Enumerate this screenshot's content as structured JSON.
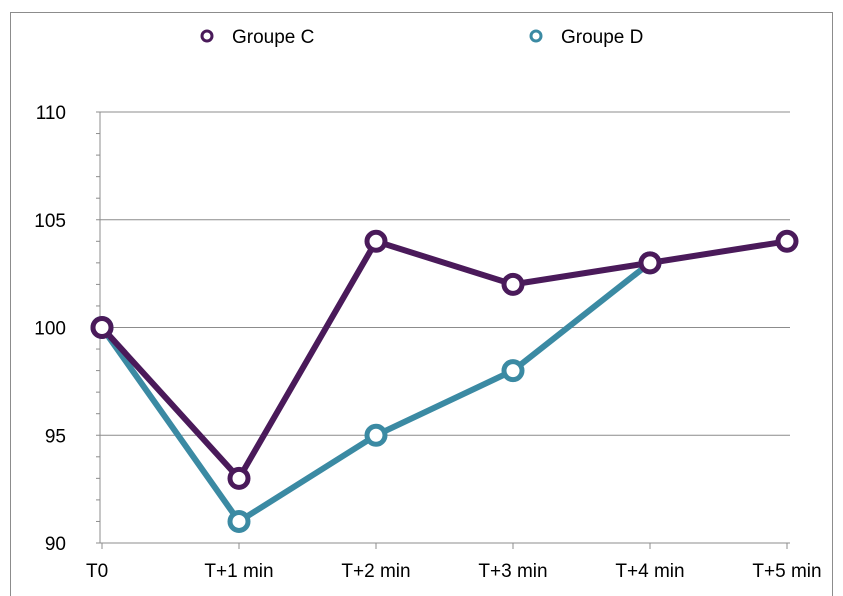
{
  "chart_data": {
    "type": "line",
    "categories": [
      "T0",
      "T+1 min",
      "T+2 min",
      "T+3 min",
      "T+4 min",
      "T+5 min"
    ],
    "series": [
      {
        "name": "Groupe C",
        "color": "#4a1a5a",
        "values": [
          100,
          93,
          104,
          102,
          103,
          104
        ]
      },
      {
        "name": "Groupe D",
        "color": "#3b8aa3",
        "values": [
          100,
          91,
          95,
          98,
          103,
          null
        ]
      }
    ],
    "ylim": [
      90,
      110
    ],
    "yticks": [
      90,
      95,
      100,
      105,
      110
    ],
    "grid": true,
    "legend": "top",
    "title": "",
    "xlabel": "",
    "ylabel": ""
  }
}
